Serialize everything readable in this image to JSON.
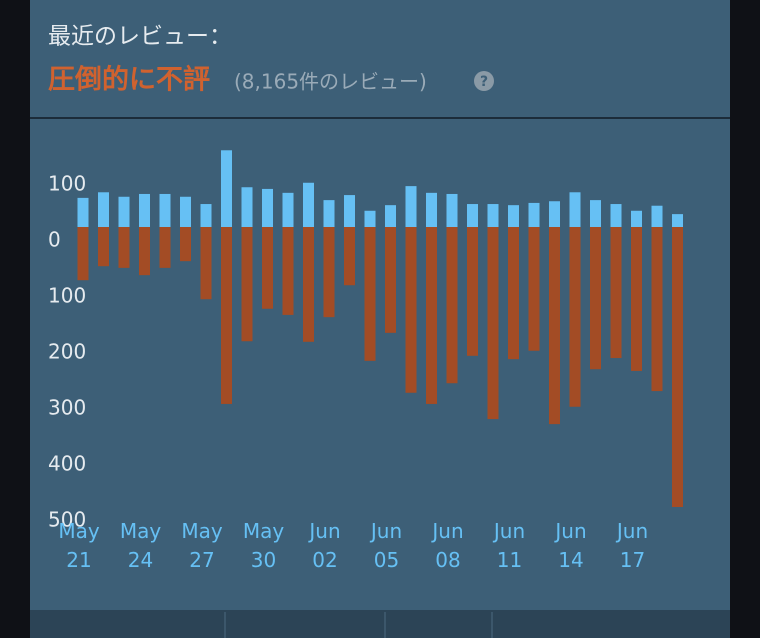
{
  "header": {
    "title": "最近のレビュー：",
    "rating": "圧倒的に不評",
    "count": "(8,165件のレビュー)",
    "help": "?"
  },
  "chart_data": {
    "type": "bar",
    "categories": [
      "May 21",
      null,
      null,
      "May 24",
      null,
      null,
      "May 27",
      null,
      null,
      "May 30",
      null,
      null,
      "Jun 02",
      null,
      null,
      "Jun 05",
      null,
      null,
      "Jun 08",
      null,
      null,
      "Jun 11",
      null,
      null,
      "Jun 14",
      null,
      null,
      "Jun 17",
      null,
      null
    ],
    "series": [
      {
        "color": "#66c0f4",
        "values": [
          52,
          62,
          54,
          59,
          59,
          54,
          41,
          137,
          71,
          68,
          61,
          79,
          48,
          57,
          29,
          39,
          73,
          61,
          59,
          41,
          41,
          39,
          43,
          46,
          62,
          48,
          41,
          29,
          38,
          23
        ]
      },
      {
        "color": "#a34c25",
        "values": [
          -95,
          -70,
          -73,
          -86,
          -73,
          -61,
          -129,
          -316,
          -204,
          -146,
          -157,
          -205,
          -161,
          -104,
          -239,
          -189,
          -296,
          -316,
          -279,
          -230,
          -343,
          -236,
          -221,
          -352,
          -321,
          -254,
          -234,
          -257,
          -293,
          -500
        ]
      }
    ],
    "ylim": [
      -520,
      160
    ],
    "yticks": [
      100,
      0,
      {
        "value": -100,
        "label": "100"
      },
      {
        "value": -200,
        "label": "200"
      },
      {
        "value": -300,
        "label": "300"
      },
      {
        "value": -400,
        "label": "400"
      },
      {
        "value": -500,
        "label": "500"
      }
    ]
  }
}
